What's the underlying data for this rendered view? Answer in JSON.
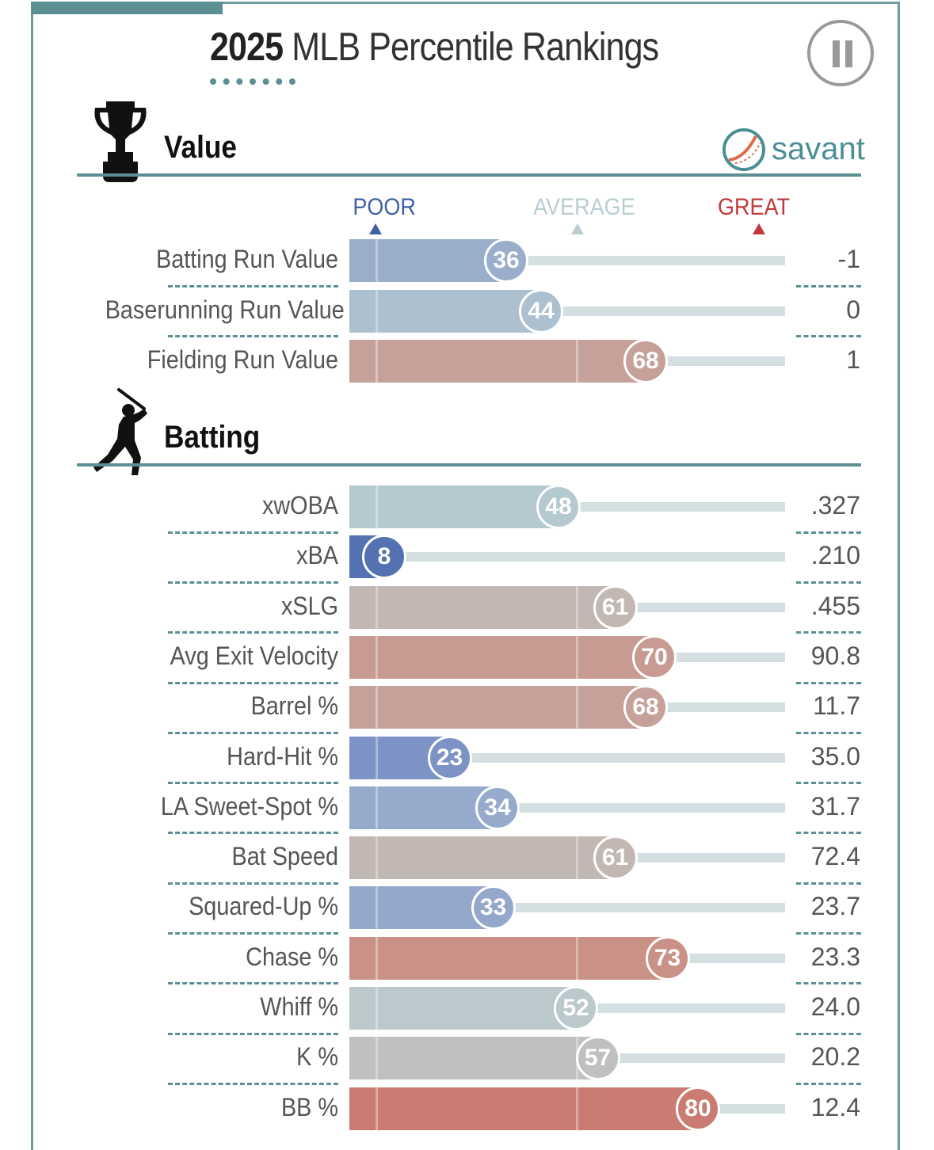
{
  "header": {
    "title_year": "2025",
    "title_rest": " MLB Percentile Rankings"
  },
  "brand": {
    "name": "savant",
    "color": "#4a8f95"
  },
  "icons": {
    "value_section": "trophy-icon",
    "batting_section": "batter-icon",
    "control": "pause-icon"
  },
  "scale": {
    "poor": {
      "label": "POOR",
      "color": "#3f5fa6"
    },
    "average": {
      "label": "AVERAGE",
      "color": "#b9cdd1"
    },
    "great": {
      "label": "GREAT",
      "color": "#c0393b"
    }
  },
  "chart_data": [
    {
      "type": "bar",
      "title": "Value",
      "xlim": [
        0,
        100
      ],
      "categories": [
        "Batting Run Value",
        "Baserunning Run Value",
        "Fielding Run Value"
      ],
      "percentiles": [
        36,
        44,
        68
      ],
      "values": [
        "-1",
        "0",
        "1"
      ]
    },
    {
      "type": "bar",
      "title": "Batting",
      "xlim": [
        0,
        100
      ],
      "categories": [
        "xwOBA",
        "xBA",
        "xSLG",
        "Avg Exit Velocity",
        "Barrel %",
        "Hard-Hit %",
        "LA Sweet-Spot %",
        "Bat Speed",
        "Squared-Up %",
        "Chase %",
        "Whiff %",
        "K %",
        "BB %"
      ],
      "percentiles": [
        48,
        8,
        61,
        70,
        68,
        23,
        34,
        61,
        33,
        73,
        52,
        57,
        80
      ],
      "values": [
        ".327",
        ".210",
        ".455",
        "90.8",
        "11.7",
        "35.0",
        "31.7",
        "72.4",
        "23.7",
        "23.3",
        "24.0",
        "20.2",
        "12.4"
      ]
    }
  ]
}
